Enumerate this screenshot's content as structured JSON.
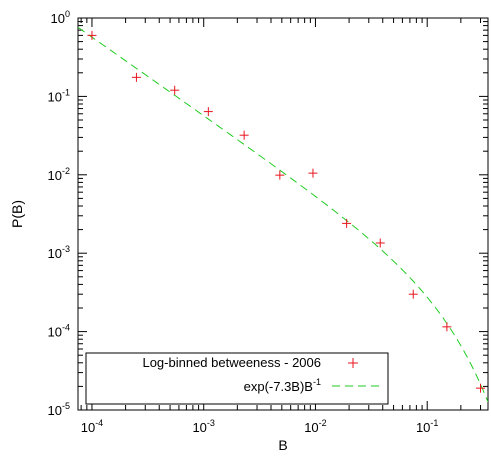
{
  "chart_data": {
    "type": "scatter",
    "xlabel": "B",
    "ylabel": "P(B)",
    "xscale": "log",
    "yscale": "log",
    "xlim": [
      7.5e-05,
      0.35
    ],
    "ylim": [
      1e-05,
      1
    ],
    "x_ticks": [
      {
        "value": 0.0001,
        "base": "10",
        "exp": "-4"
      },
      {
        "value": 0.001,
        "base": "10",
        "exp": "-3"
      },
      {
        "value": 0.01,
        "base": "10",
        "exp": "-2"
      },
      {
        "value": 0.1,
        "base": "10",
        "exp": "-1"
      }
    ],
    "y_ticks": [
      {
        "value": 1e-05,
        "base": "10",
        "exp": "-5"
      },
      {
        "value": 0.0001,
        "base": "10",
        "exp": "-4"
      },
      {
        "value": 0.001,
        "base": "10",
        "exp": "-3"
      },
      {
        "value": 0.01,
        "base": "10",
        "exp": "-2"
      },
      {
        "value": 0.1,
        "base": "10",
        "exp": "-1"
      },
      {
        "value": 1,
        "base": "10",
        "exp": "0"
      }
    ],
    "grid": false,
    "legend_position": "bottom-left",
    "series": [
      {
        "name": "Log-binned betweeness - 2006",
        "type": "scatter",
        "marker": "plus",
        "color": "#e8141c",
        "points": [
          {
            "x": 0.0001,
            "y": 0.6
          },
          {
            "x": 0.00025,
            "y": 0.175
          },
          {
            "x": 0.00055,
            "y": 0.12
          },
          {
            "x": 0.0011,
            "y": 0.064
          },
          {
            "x": 0.0023,
            "y": 0.032
          },
          {
            "x": 0.0048,
            "y": 0.0099
          },
          {
            "x": 0.0095,
            "y": 0.0105
          },
          {
            "x": 0.019,
            "y": 0.0024
          },
          {
            "x": 0.038,
            "y": 0.00135
          },
          {
            "x": 0.075,
            "y": 0.0003
          },
          {
            "x": 0.15,
            "y": 0.000115
          },
          {
            "x": 0.3,
            "y": 1.9e-05
          }
        ]
      },
      {
        "name_main": "exp(-7.3B)B",
        "name_sup": "-1",
        "type": "line",
        "dash": true,
        "color": "#22cc22",
        "function": {
          "amplitude": 5.7e-05,
          "rate": -7.3,
          "power": -1
        }
      }
    ]
  }
}
